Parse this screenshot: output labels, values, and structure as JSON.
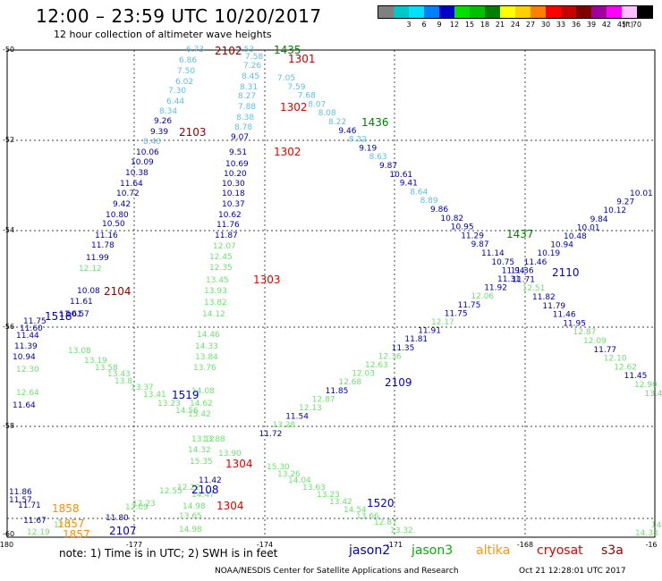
{
  "header": {
    "title": "12:00 – 23:59 UTC 10/20/2017",
    "subtitle": "12 hour collection of altimeter wave heights"
  },
  "legend": {
    "unit": "(ft)",
    "bins": [
      {
        "label": "",
        "color": "#808080"
      },
      {
        "label": "3",
        "color": "#00c8c8"
      },
      {
        "label": "6",
        "color": "#00e0ff"
      },
      {
        "label": "9",
        "color": "#0080ff"
      },
      {
        "label": "12",
        "color": "#0000c8"
      },
      {
        "label": "15",
        "color": "#00e000"
      },
      {
        "label": "18",
        "color": "#00c000"
      },
      {
        "label": "21",
        "color": "#008000"
      },
      {
        "label": "24",
        "color": "#ffff00"
      },
      {
        "label": "27",
        "color": "#ffd000"
      },
      {
        "label": "30",
        "color": "#ff8000"
      },
      {
        "label": "33",
        "color": "#ff0000"
      },
      {
        "label": "36",
        "color": "#c80000"
      },
      {
        "label": "39",
        "color": "#800000"
      },
      {
        "label": "42",
        "color": "#a000a0"
      },
      {
        "label": "45",
        "color": "#ff00ff"
      },
      {
        "label": "70",
        "color": "#ffc0ff"
      },
      {
        "label": "",
        "color": "#000000"
      }
    ]
  },
  "axes": {
    "lon_ticks": [
      "-180",
      "-177",
      "-174",
      "-171",
      "-168",
      "-16"
    ],
    "lat_ticks": [
      "-50",
      "-52",
      "-54",
      "-56",
      "-58",
      "-60"
    ]
  },
  "tracks": {
    "blue_top": [
      [
        "6.73",
        "#60c0e0"
      ],
      [
        "6.86",
        "#60c0e0"
      ],
      [
        "7.50",
        "#60c0e0"
      ],
      [
        "6.02",
        "#60c0e0"
      ],
      [
        "7.30",
        "#60c0e0"
      ],
      [
        "6.44",
        "#60c0e0"
      ],
      [
        "8.34",
        "#60c0e0"
      ],
      [
        "9.26",
        "#0000a0"
      ],
      [
        "9.39",
        "#0000a0"
      ],
      [
        "8.40",
        "#60c0e0"
      ],
      [
        "10.06",
        "#0000a0"
      ],
      [
        "10.09",
        "#0000a0"
      ],
      [
        "10.38",
        "#0000a0"
      ],
      [
        "11.64",
        "#0000a0"
      ],
      [
        "10.72",
        "#0000a0"
      ],
      [
        "9.42",
        "#0000a0"
      ],
      [
        "10.80",
        "#0000a0"
      ],
      [
        "10.50",
        "#0000a0"
      ],
      [
        "11.16",
        "#0000a0"
      ],
      [
        "11.78",
        "#0000a0"
      ],
      [
        "11.99",
        "#0000a0"
      ],
      [
        "12.12",
        "#70e070"
      ],
      [
        "10.08",
        "#0000a0"
      ],
      [
        "11.61",
        "#0000a0"
      ],
      [
        "10.57",
        "#0000a0"
      ],
      [
        "11.61",
        "#0000a0"
      ],
      [
        "11.75",
        "#0000a0"
      ],
      [
        "11.60",
        "#0000a0"
      ],
      [
        "11.44",
        "#0000a0"
      ],
      [
        "11.39",
        "#0000a0"
      ],
      [
        "10.94",
        "#0000a0"
      ],
      [
        "12.30",
        "#70e070"
      ],
      [
        "12.64",
        "#70e070"
      ],
      [
        "11.64",
        "#0000a0"
      ]
    ],
    "center_up": [
      [
        "7.53",
        "#60c0e0"
      ],
      [
        "7.58",
        "#60c0e0"
      ],
      [
        "7.26",
        "#60c0e0"
      ],
      [
        "8.45",
        "#60c0e0"
      ],
      [
        "8.31",
        "#60c0e0"
      ],
      [
        "8.27",
        "#60c0e0"
      ],
      [
        "7.88",
        "#60c0e0"
      ],
      [
        "8.38",
        "#60c0e0"
      ],
      [
        "8.78",
        "#60c0e0"
      ],
      [
        "9.07",
        "#0000a0"
      ],
      [
        "9.51",
        "#0000a0"
      ],
      [
        "10.69",
        "#0000a0"
      ],
      [
        "10.20",
        "#0000a0"
      ],
      [
        "10.30",
        "#0000a0"
      ],
      [
        "10.18",
        "#0000a0"
      ],
      [
        "10.37",
        "#0000a0"
      ],
      [
        "10.62",
        "#0000a0"
      ],
      [
        "11.76",
        "#0000a0"
      ],
      [
        "11.87",
        "#0000a0"
      ],
      [
        "12.07",
        "#70e070"
      ],
      [
        "12.45",
        "#70e070"
      ],
      [
        "12.35",
        "#70e070"
      ],
      [
        "13.45",
        "#70e070"
      ],
      [
        "13.93",
        "#70e070"
      ],
      [
        "13.82",
        "#70e070"
      ],
      [
        "14.12",
        "#70e070"
      ],
      [
        "14.46",
        "#70e070"
      ],
      [
        "14.33",
        "#70e070"
      ],
      [
        "13.84",
        "#70e070"
      ],
      [
        "13.76",
        "#70e070"
      ],
      [
        "14.08",
        "#70e070"
      ],
      [
        "14.62",
        "#70e070"
      ],
      [
        "15.42",
        "#70e070"
      ]
    ],
    "diag_down": [
      [
        "7.05",
        "#60c0e0"
      ],
      [
        "7.59",
        "#60c0e0"
      ],
      [
        "7.68",
        "#60c0e0"
      ],
      [
        "8.07",
        "#60c0e0"
      ],
      [
        "8.08",
        "#60c0e0"
      ],
      [
        "8.22",
        "#60c0e0"
      ],
      [
        "9.46",
        "#0000a0"
      ],
      [
        "8.32",
        "#60c0e0"
      ],
      [
        "9.19",
        "#0000a0"
      ],
      [
        "8.63",
        "#60c0e0"
      ],
      [
        "9.87",
        "#0000a0"
      ],
      [
        "10.61",
        "#0000a0"
      ],
      [
        "9.41",
        "#0000a0"
      ],
      [
        "8.64",
        "#60c0e0"
      ],
      [
        "8.89",
        "#60c0e0"
      ],
      [
        "9.86",
        "#0000a0"
      ],
      [
        "10.82",
        "#0000a0"
      ],
      [
        "10.95",
        "#0000a0"
      ],
      [
        "11.29",
        "#0000a0"
      ],
      [
        "9.87",
        "#0000a0"
      ],
      [
        "11.14",
        "#0000a0"
      ],
      [
        "10.75",
        "#0000a0"
      ],
      [
        "11.94",
        "#0000a0"
      ],
      [
        "11.71",
        "#0000a0"
      ],
      [
        "12.51",
        "#70e070"
      ],
      [
        "11.82",
        "#0000a0"
      ],
      [
        "11.79",
        "#0000a0"
      ],
      [
        "11.46",
        "#0000a0"
      ],
      [
        "11.95",
        "#0000a0"
      ],
      [
        "12.87",
        "#70e070"
      ],
      [
        "12.09",
        "#70e070"
      ],
      [
        "11.77",
        "#0000a0"
      ],
      [
        "12.10",
        "#70e070"
      ],
      [
        "12.62",
        "#70e070"
      ],
      [
        "11.45",
        "#0000a0"
      ],
      [
        "12.90",
        "#70e070"
      ],
      [
        "13.49",
        "#70e070"
      ]
    ],
    "diag_up": [
      [
        "10.01",
        "#0000a0"
      ],
      [
        "9.27",
        "#0000a0"
      ],
      [
        "10.12",
        "#0000a0"
      ],
      [
        "9.84",
        "#0000a0"
      ],
      [
        "10.01",
        "#0000a0"
      ],
      [
        "10.48",
        "#0000a0"
      ],
      [
        "10.94",
        "#0000a0"
      ],
      [
        "10.19",
        "#0000a0"
      ],
      [
        "11.46",
        "#0000a0"
      ],
      [
        "11.36",
        "#0000a0"
      ],
      [
        "11.31",
        "#0000a0"
      ],
      [
        "11.92",
        "#0000a0"
      ],
      [
        "12.06",
        "#70e070"
      ],
      [
        "11.75",
        "#0000a0"
      ],
      [
        "11.75",
        "#0000a0"
      ],
      [
        "12.17",
        "#70e070"
      ],
      [
        "11.91",
        "#0000a0"
      ],
      [
        "11.81",
        "#0000a0"
      ],
      [
        "11.35",
        "#0000a0"
      ],
      [
        "12.36",
        "#70e070"
      ],
      [
        "12.63",
        "#70e070"
      ],
      [
        "12.03",
        "#70e070"
      ],
      [
        "12.68",
        "#70e070"
      ],
      [
        "11.85",
        "#0000a0"
      ],
      [
        "12.87",
        "#70e070"
      ],
      [
        "12.13",
        "#70e070"
      ],
      [
        "11.54",
        "#0000a0"
      ],
      [
        "13.28",
        "#70e070"
      ],
      [
        "11.72",
        "#0000a0"
      ]
    ],
    "lower_misc": [
      [
        "13.08",
        "#70e070"
      ],
      [
        "13.19",
        "#70e070"
      ],
      [
        "13.58",
        "#70e070"
      ],
      [
        "13.43",
        "#70e070"
      ],
      [
        "13.8",
        "#70e070"
      ],
      [
        "13.37",
        "#70e070"
      ],
      [
        "13.41",
        "#70e070"
      ],
      [
        "13.23",
        "#70e070"
      ],
      [
        "14.56",
        "#70e070"
      ],
      [
        "13.12",
        "#70e070"
      ],
      [
        "13.88",
        "#70e070"
      ],
      [
        "14.32",
        "#70e070"
      ],
      [
        "13.90",
        "#70e070"
      ],
      [
        "15.30",
        "#70e070"
      ],
      [
        "13.26",
        "#70e070"
      ],
      [
        "14.04",
        "#70e070"
      ],
      [
        "13.63",
        "#70e070"
      ],
      [
        "13.23",
        "#70e070"
      ],
      [
        "13.42",
        "#70e070"
      ],
      [
        "14.54",
        "#70e070"
      ],
      [
        "13.66",
        "#70e070"
      ],
      [
        "12.87",
        "#70e070"
      ],
      [
        "13.32",
        "#70e070"
      ],
      [
        "11.42",
        "#0000a0"
      ],
      [
        "12.22",
        "#70e070"
      ],
      [
        "12.55",
        "#70e070"
      ],
      [
        "12.23",
        "#70e070"
      ],
      [
        "14.47",
        "#70e070"
      ],
      [
        "14.98",
        "#70e070"
      ],
      [
        "13.65",
        "#70e070"
      ],
      [
        "14.98",
        "#70e070"
      ],
      [
        "11.80",
        "#0000a0"
      ],
      [
        "12.19",
        "#70e070"
      ],
      [
        "12.1",
        "#70e070"
      ],
      [
        "11.86",
        "#0000a0"
      ],
      [
        "11.71",
        "#0000a0"
      ],
      [
        "11.67",
        "#0000a0"
      ],
      [
        "11.57",
        "#0000a0"
      ],
      [
        "12.09",
        "#70e070"
      ],
      [
        "14",
        "#70e070"
      ],
      [
        "14.33",
        "#70e070"
      ],
      [
        "15.35",
        "#70e070"
      ]
    ]
  },
  "time_labels": [
    {
      "text": "2102",
      "color": "#8b0000"
    },
    {
      "text": "1435",
      "color": "#008000"
    },
    {
      "text": "1301",
      "color": "#c00000"
    },
    {
      "text": "1302",
      "color": "#e00000"
    },
    {
      "text": "1436",
      "color": "#008000"
    },
    {
      "text": "2103",
      "color": "#8b0000"
    },
    {
      "text": "1302",
      "color": "#e00000"
    },
    {
      "text": "1437",
      "color": "#008000"
    },
    {
      "text": "2110",
      "color": "#0000c0"
    },
    {
      "text": "1303",
      "color": "#e00000"
    },
    {
      "text": "2104",
      "color": "#8b0000"
    },
    {
      "text": "1518",
      "color": "#0000c0"
    },
    {
      "text": "1519",
      "color": "#0000c0"
    },
    {
      "text": "2109",
      "color": "#0000c0"
    },
    {
      "text": "1304",
      "color": "#e00000"
    },
    {
      "text": "2108",
      "color": "#0000c0"
    },
    {
      "text": "1304",
      "color": "#e00000"
    },
    {
      "text": "1520",
      "color": "#0000c0"
    },
    {
      "text": "1858",
      "color": "#ff8c00"
    },
    {
      "text": "1857",
      "color": "#ff8c00"
    },
    {
      "text": "1857",
      "color": "#ff8c00"
    },
    {
      "text": "2107",
      "color": "#0000c0"
    }
  ],
  "footer": {
    "note": "note:  1) Time is in UTC;  2) SWH is in feet",
    "satellites": [
      {
        "name": "jason2",
        "color": "#0000c8"
      },
      {
        "name": "jason3",
        "color": "#00b000"
      },
      {
        "name": "altika",
        "color": "#ff9900"
      },
      {
        "name": "cryosat",
        "color": "#e00000"
      },
      {
        "name": "s3a",
        "color": "#8b0000"
      }
    ],
    "credit": "NOAA/NESDIS Center for Satellite Applications and Research",
    "generated": "Oct 21 12:28:01 UTC 2017"
  }
}
